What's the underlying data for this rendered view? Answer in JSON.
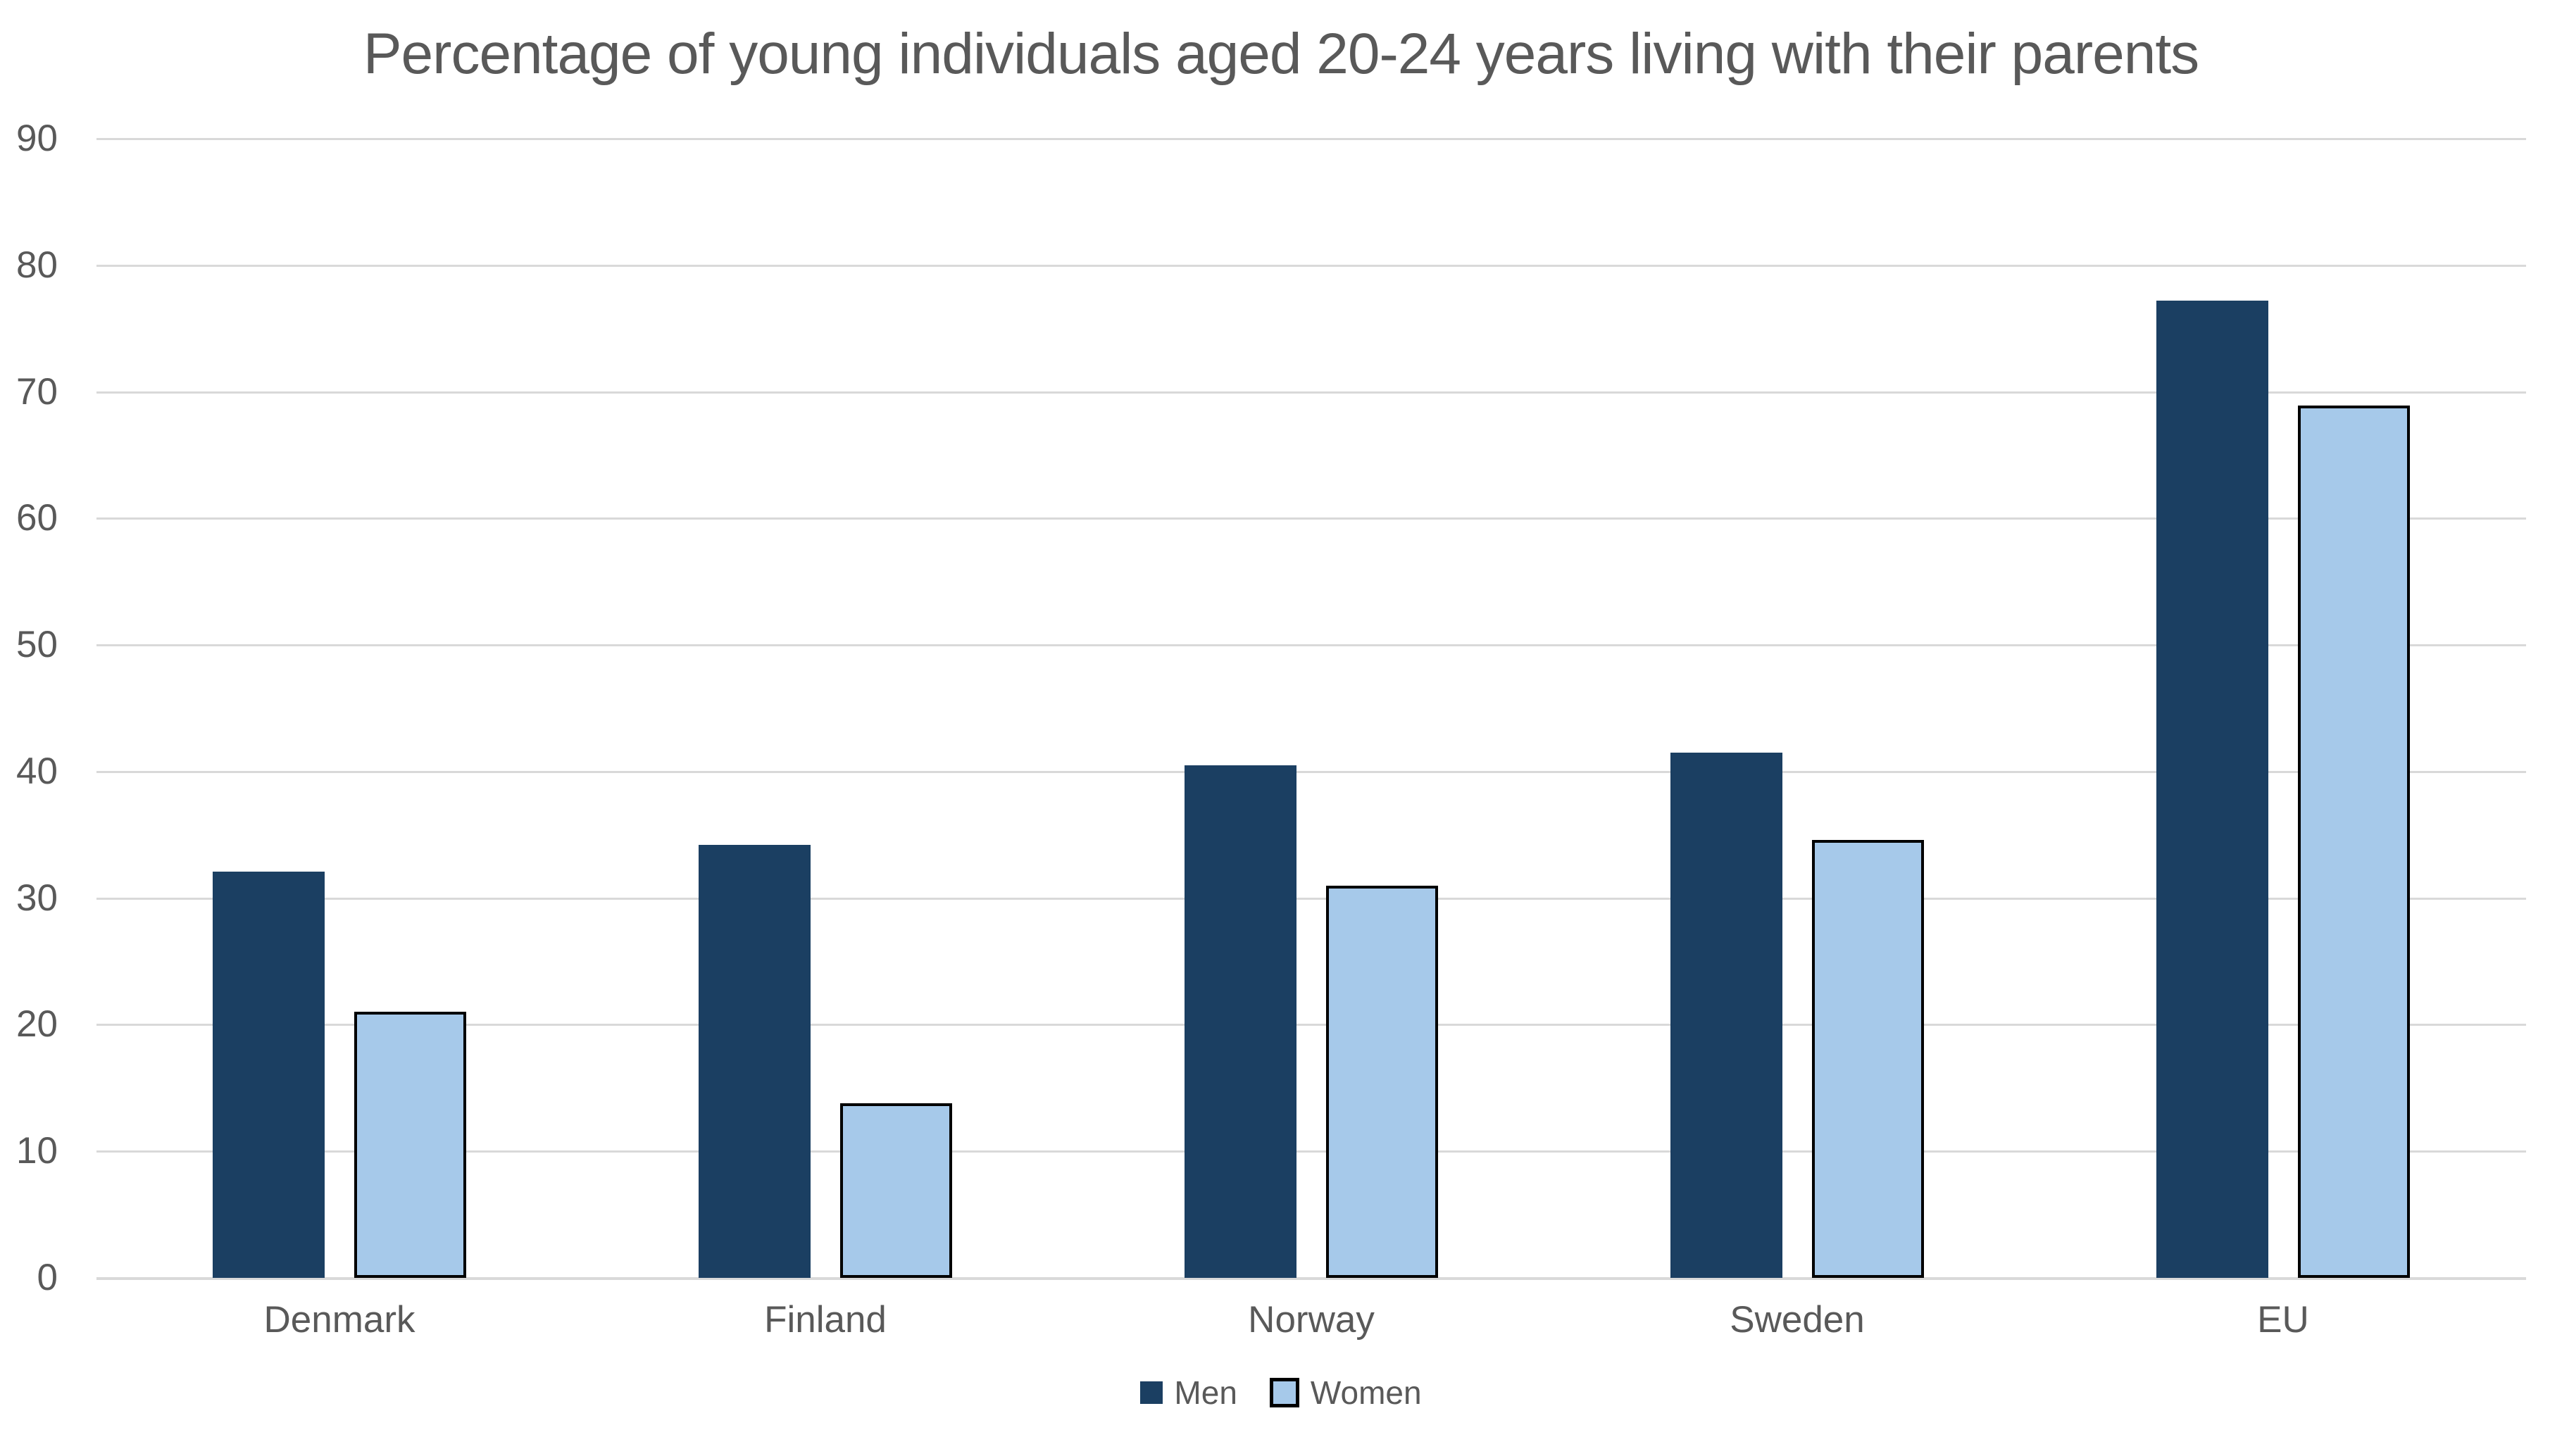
{
  "chart_data": {
    "type": "bar",
    "title": "Percentage of young individuals aged 20-24 years living with their parents",
    "categories": [
      "Denmark",
      "Finland",
      "Norway",
      "Sweden",
      "EU"
    ],
    "series": [
      {
        "name": "Men",
        "color": "#1b3f62",
        "border_color": null,
        "values": [
          32.1,
          34.2,
          40.5,
          41.5,
          77.2
        ]
      },
      {
        "name": "Women",
        "color": "#a6c9ea",
        "border_color": "#000000",
        "values": [
          21.0,
          13.8,
          31.0,
          34.6,
          68.9
        ]
      }
    ],
    "ylim": [
      0,
      90
    ],
    "ytick_step": 10,
    "yticks": [
      0,
      10,
      20,
      30,
      40,
      50,
      60,
      70,
      80,
      90
    ],
    "xlabel": "",
    "ylabel": "",
    "grid": true,
    "legend_position": "bottom"
  },
  "colors": {
    "title_text": "#595959",
    "axis_text": "#595959",
    "gridline": "#d9d9d9",
    "background": "#ffffff",
    "men_bar": "#1b3f62",
    "women_bar": "#a6c9ea",
    "women_bar_border": "#000000"
  },
  "legend": {
    "items": [
      {
        "label": "Men"
      },
      {
        "label": "Women"
      }
    ]
  }
}
